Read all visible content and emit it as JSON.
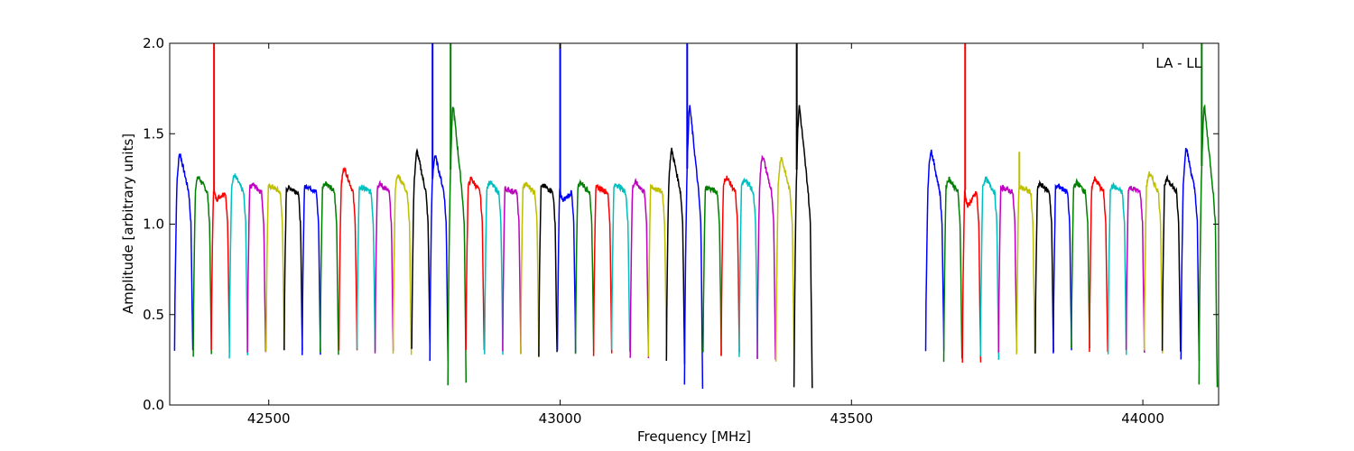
{
  "chart_data": {
    "type": "line",
    "title": "",
    "xlabel": "Frequency [MHz]",
    "ylabel": "Amplitude [arbitrary units]",
    "xlim": [
      42330,
      44130
    ],
    "ylim": [
      0.0,
      2.0
    ],
    "xticks": [
      42500,
      43000,
      43500,
      44000
    ],
    "xtick_labels": [
      "42500",
      "43000",
      "43500",
      "44000"
    ],
    "yticks": [
      0.0,
      0.5,
      1.0,
      1.5,
      2.0
    ],
    "ytick_labels": [
      "0.0",
      "0.5",
      "1.0",
      "1.5",
      "2.0"
    ],
    "grid": false,
    "legend": "none",
    "annotation": "LA - LL",
    "series_colors": [
      "#0000ff",
      "#008000",
      "#ff0000",
      "#00bfbf",
      "#bf00bf",
      "#bfbf00",
      "#000000"
    ],
    "background_color": "#bfbfbf",
    "channel_width_mhz": 31.25,
    "channel_blocks": [
      {
        "start": 42330,
        "end": 43440
      },
      {
        "start": 43630,
        "end": 44130
      }
    ],
    "typical_plateau": 1.2,
    "typical_edge_min": 0.28,
    "channels": [
      {
        "center": 42354,
        "peak": 1.39,
        "min": 0.3
      },
      {
        "center": 42386,
        "peak": 1.26,
        "min": 0.27
      },
      {
        "center": 42417,
        "peak": 1.14,
        "min": 0.3,
        "spike": 2.0
      },
      {
        "center": 42448,
        "peak": 1.27,
        "min": 0.27
      },
      {
        "center": 42479,
        "peak": 1.22,
        "min": 0.3
      },
      {
        "center": 42511,
        "peak": 1.21,
        "min": 0.3
      },
      {
        "center": 42542,
        "peak": 1.2,
        "min": 0.29
      },
      {
        "center": 42573,
        "peak": 1.21,
        "min": 0.29
      },
      {
        "center": 42604,
        "peak": 1.23,
        "min": 0.29
      },
      {
        "center": 42636,
        "peak": 1.31,
        "min": 0.3
      },
      {
        "center": 42667,
        "peak": 1.2,
        "min": 0.3
      },
      {
        "center": 42698,
        "peak": 1.22,
        "min": 0.29
      },
      {
        "center": 42729,
        "peak": 1.27,
        "min": 0.29
      },
      {
        "center": 42761,
        "peak": 1.4,
        "min": 0.3
      },
      {
        "center": 42792,
        "peak": 1.38,
        "min": 0.25,
        "spike": 2.0
      },
      {
        "center": 42823,
        "peak": 1.65,
        "min": 0.12,
        "spike": 2.0
      },
      {
        "center": 42854,
        "peak": 1.25,
        "min": 0.3
      },
      {
        "center": 42886,
        "peak": 1.23,
        "min": 0.29
      },
      {
        "center": 42917,
        "peak": 1.19,
        "min": 0.29
      },
      {
        "center": 42948,
        "peak": 1.22,
        "min": 0.27
      },
      {
        "center": 42979,
        "peak": 1.21,
        "min": 0.28
      },
      {
        "center": 43011,
        "peak": 1.13,
        "min": 0.3,
        "spike": 2.0
      },
      {
        "center": 43042,
        "peak": 1.23,
        "min": 0.29
      },
      {
        "center": 43073,
        "peak": 1.2,
        "min": 0.28
      },
      {
        "center": 43104,
        "peak": 1.22,
        "min": 0.3
      },
      {
        "center": 43136,
        "peak": 1.23,
        "min": 0.27
      },
      {
        "center": 43167,
        "peak": 1.2,
        "min": 0.27
      },
      {
        "center": 43198,
        "peak": 1.41,
        "min": 0.23
      },
      {
        "center": 43229,
        "peak": 1.65,
        "min": 0.1,
        "spike": 2.0
      },
      {
        "center": 43261,
        "peak": 1.2,
        "min": 0.28
      },
      {
        "center": 43292,
        "peak": 1.26,
        "min": 0.28
      },
      {
        "center": 43323,
        "peak": 1.25,
        "min": 0.27
      },
      {
        "center": 43354,
        "peak": 1.38,
        "min": 0.26
      },
      {
        "center": 43386,
        "peak": 1.37,
        "min": 0.23
      },
      {
        "center": 43417,
        "peak": 1.65,
        "min": 0.1,
        "spike": 2.0
      },
      {
        "center": 43643,
        "peak": 1.41,
        "min": 0.29
      },
      {
        "center": 43674,
        "peak": 1.25,
        "min": 0.25
      },
      {
        "center": 43706,
        "peak": 1.1,
        "min": 0.24,
        "spike": 2.0
      },
      {
        "center": 43737,
        "peak": 1.25,
        "min": 0.26
      },
      {
        "center": 43768,
        "peak": 1.2,
        "min": 0.28
      },
      {
        "center": 43799,
        "peak": 1.2,
        "min": 0.28,
        "spike": 1.4
      },
      {
        "center": 43831,
        "peak": 1.22,
        "min": 0.29
      },
      {
        "center": 43862,
        "peak": 1.21,
        "min": 0.29
      },
      {
        "center": 43893,
        "peak": 1.23,
        "min": 0.3
      },
      {
        "center": 43924,
        "peak": 1.25,
        "min": 0.28
      },
      {
        "center": 43956,
        "peak": 1.21,
        "min": 0.29
      },
      {
        "center": 43987,
        "peak": 1.2,
        "min": 0.3
      },
      {
        "center": 44018,
        "peak": 1.28,
        "min": 0.29
      },
      {
        "center": 44049,
        "peak": 1.25,
        "min": 0.3
      },
      {
        "center": 44081,
        "peak": 1.42,
        "min": 0.25
      },
      {
        "center": 44112,
        "peak": 1.65,
        "min": 0.11,
        "spike": 2.0
      }
    ]
  }
}
